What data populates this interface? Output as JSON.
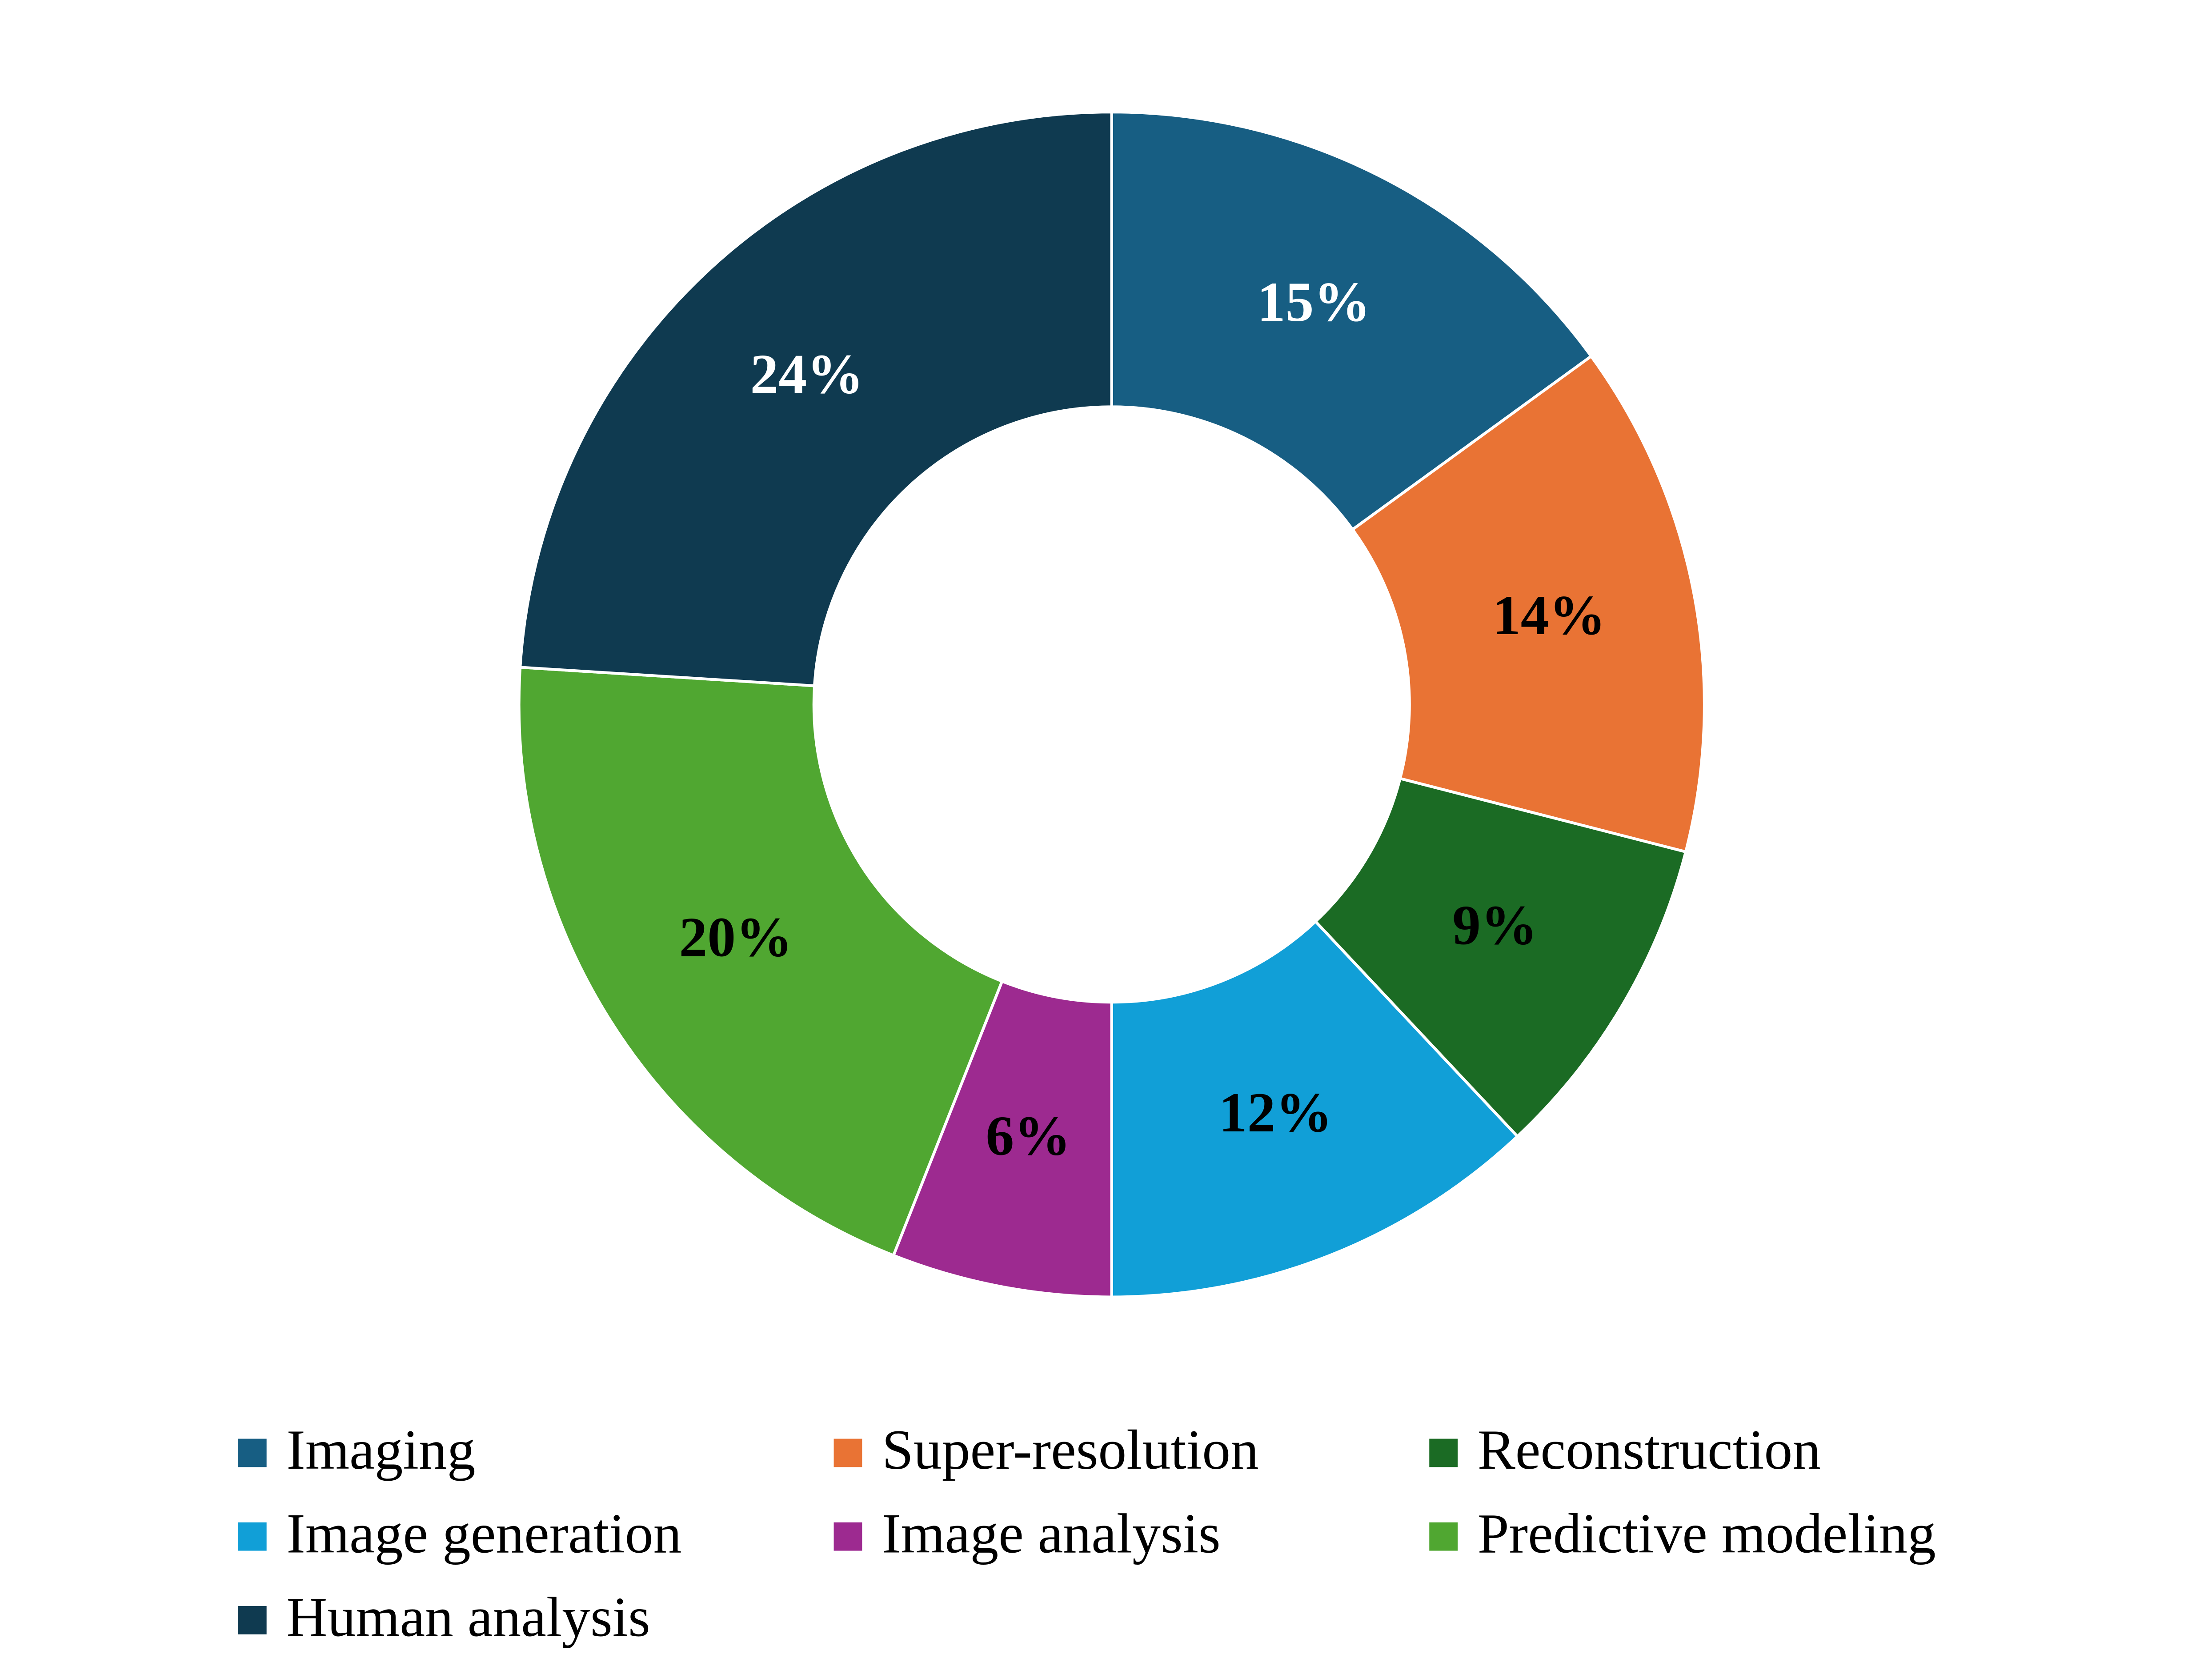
{
  "chart_data": {
    "type": "donut",
    "categories": [
      "Imaging",
      "Super-resolution",
      "Reconstruction",
      "Image generation",
      "Image analysis",
      "Predictive modeling",
      "Human analysis"
    ],
    "values": [
      15,
      14,
      9,
      12,
      6,
      20,
      24
    ],
    "value_labels": [
      "15%",
      "14%",
      "9%",
      "12%",
      "6%",
      "20%",
      "24%"
    ],
    "colors": [
      "#175e83",
      "#e97334",
      "#1b6b24",
      "#119fd7",
      "#9d2a90",
      "#50a731",
      "#0f3a50"
    ],
    "label_colors": [
      "#ffffff",
      "#000000",
      "#000000",
      "#000000",
      "#000000",
      "#000000",
      "#ffffff"
    ],
    "legend": "bottom"
  }
}
